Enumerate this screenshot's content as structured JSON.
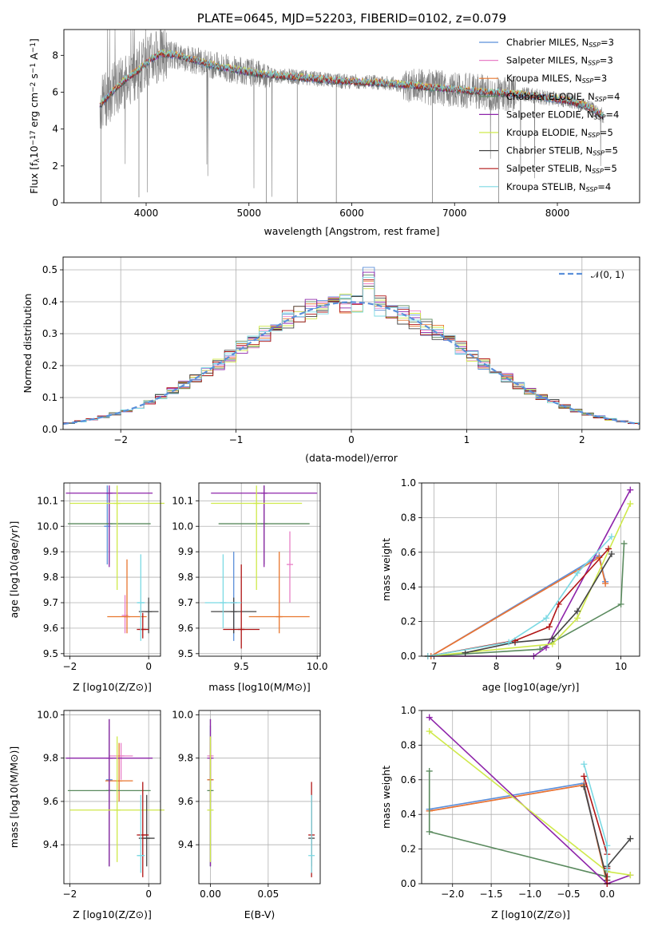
{
  "figure": {
    "title": "PLATE=0645, MJD=52203, FIBERID=0102, z=0.079"
  },
  "colors": {
    "chabrier_miles": "#5b8fd9",
    "salpeter_miles": "#e87fc7",
    "kroupa_miles": "#e8762e",
    "chabrier_elodie": "#5a8a5e",
    "salpeter_elodie": "#8e24aa",
    "kroupa_elodie": "#cfe94a",
    "chabrier_stelib": "#444444",
    "salpeter_stelib": "#b01515",
    "kroupa_stelib": "#7bd9e3",
    "data": "#808080",
    "normal_curve": "#5b8fd9",
    "grid": "#b0b0b0"
  },
  "chart_data": [
    {
      "id": "spectrum",
      "type": "line",
      "title": "PLATE=0645, MJD=52203, FIBERID=0102, z=0.079",
      "xlabel": "wavelength [Angstrom, rest frame]",
      "ylabel": "Flux [f",
      "ylabel_parts": [
        "Flux [f",
        "λ",
        "10",
        "−17",
        " erg cm",
        "−2",
        " s",
        "−1",
        " A",
        "−1",
        "]"
      ],
      "xlim": [
        3200,
        8800
      ],
      "ylim": [
        0,
        9.4
      ],
      "xticks": [
        4000,
        5000,
        6000,
        7000,
        8000
      ],
      "yticks": [
        0,
        2,
        4,
        6,
        8
      ],
      "grid": false,
      "legend_position": "top-right",
      "continuum": {
        "x": [
          3550,
          3650,
          3800,
          3950,
          4050,
          4150,
          4300,
          4500,
          4700,
          4900,
          5100,
          5300,
          5500,
          5700,
          5900,
          6100,
          6300,
          6500,
          6700,
          6900,
          7100,
          7300,
          7500,
          7700,
          7900,
          8100,
          8300,
          8450
        ],
        "y": [
          5.3,
          5.9,
          6.7,
          7.3,
          7.8,
          8.1,
          8.0,
          7.7,
          7.4,
          7.2,
          7.0,
          6.9,
          6.8,
          6.7,
          6.6,
          6.55,
          6.5,
          6.4,
          6.3,
          6.2,
          6.1,
          6.0,
          5.95,
          5.85,
          5.7,
          5.55,
          5.2,
          4.7
        ]
      },
      "series": [
        {
          "name": "Chabrier MILES",
          "nssp": "3",
          "color_key": "chabrier_miles"
        },
        {
          "name": "Salpeter MILES",
          "nssp": "3",
          "color_key": "salpeter_miles"
        },
        {
          "name": "Kroupa MILES",
          "nssp": "3",
          "color_key": "kroupa_miles"
        },
        {
          "name": "Chabrier ELODIE",
          "nssp": "4",
          "color_key": "chabrier_elodie"
        },
        {
          "name": "Salpeter ELODIE",
          "nssp": "4",
          "color_key": "salpeter_elodie"
        },
        {
          "name": "Kroupa ELODIE",
          "nssp": "5",
          "color_key": "kroupa_elodie"
        },
        {
          "name": "Chabrier STELIB",
          "nssp": "5",
          "color_key": "chabrier_stelib"
        },
        {
          "name": "Salpeter STELIB",
          "nssp": "5",
          "color_key": "salpeter_stelib"
        },
        {
          "name": "Kroupa STELIB",
          "nssp": "4",
          "color_key": "kroupa_stelib"
        }
      ]
    },
    {
      "id": "residuals",
      "type": "histogram",
      "xlabel": "(data-model)/error",
      "ylabel": "Normed distribution",
      "xlim": [
        -2.5,
        2.5
      ],
      "ylim": [
        0,
        0.54
      ],
      "xticks": [
        -2,
        -1,
        0,
        1,
        2
      ],
      "xtick_labels": [
        "−2",
        "−1",
        "0",
        "1",
        "2"
      ],
      "yticks": [
        0.0,
        0.1,
        0.2,
        0.3,
        0.4,
        0.5
      ],
      "ytick_labels": [
        "0.0",
        "0.1",
        "0.2",
        "0.3",
        "0.4",
        "0.5"
      ],
      "grid": true,
      "legend_position": "top-right",
      "legend_label": "𝒩(0, 1)",
      "bin_width": 0.1
    },
    {
      "id": "age_vs_Z",
      "type": "errorbar",
      "xlabel": "Z [log10(Z/Z⊙)]",
      "ylabel": "age  [log10(age/yr)]",
      "xlim": [
        -2.15,
        0.3
      ],
      "ylim": [
        9.49,
        10.17
      ],
      "xticks": [
        -2,
        0
      ],
      "xtick_labels": [
        "−2",
        "0"
      ],
      "yticks": [
        9.5,
        9.6,
        9.7,
        9.8,
        9.9,
        10.0,
        10.1
      ],
      "ytick_labels": [
        "9.5",
        "9.6",
        "9.7",
        "9.8",
        "9.9",
        "10.0",
        "10.1"
      ],
      "grid": true,
      "points": [
        {
          "c": "chabrier_miles",
          "x": -1.05,
          "xerr": 0.0,
          "y": 10.0,
          "ylo": 9.85,
          "yhi": 10.16
        },
        {
          "c": "salpeter_miles",
          "x": -0.6,
          "xerr": 0.0,
          "y": 9.65,
          "ylo": 9.58,
          "yhi": 9.73
        },
        {
          "c": "kroupa_miles",
          "x": -0.55,
          "xerr": 0.5,
          "y": 9.645,
          "ylo": 9.58,
          "yhi": 9.87
        },
        {
          "c": "chabrier_elodie",
          "x": -1.0,
          "xerr": 1.05,
          "y": 10.01,
          "ylo": 9.85,
          "yhi": 10.15
        },
        {
          "c": "salpeter_elodie",
          "x": -1.0,
          "xerr": 1.1,
          "y": 10.13,
          "ylo": 9.84,
          "yhi": 10.16
        },
        {
          "c": "kroupa_elodie",
          "x": -0.8,
          "xerr": 1.2,
          "y": 10.09,
          "ylo": 9.75,
          "yhi": 10.16
        },
        {
          "c": "chabrier_stelib",
          "x": 0.0,
          "xerr": 0.25,
          "y": 9.665,
          "ylo": 9.58,
          "yhi": 9.72
        },
        {
          "c": "salpeter_stelib",
          "x": -0.15,
          "xerr": 0.15,
          "y": 9.595,
          "ylo": 9.56,
          "yhi": 9.66
        },
        {
          "c": "kroupa_stelib",
          "x": -0.2,
          "xerr": 0.1,
          "y": 9.7,
          "ylo": 9.55,
          "yhi": 9.89
        }
      ]
    },
    {
      "id": "age_vs_mass",
      "type": "errorbar",
      "xlabel": "mass [log10(M/M⊙)]",
      "ylabel": "",
      "xlim": [
        9.22,
        10.02
      ],
      "ylim": [
        9.49,
        10.17
      ],
      "xticks": [
        9.5,
        10.0
      ],
      "xtick_labels": [
        "9.5",
        "10.0"
      ],
      "yticks": [
        9.5,
        9.6,
        9.7,
        9.8,
        9.9,
        10.0,
        10.1
      ],
      "ytick_labels": [
        "9.5",
        "9.6",
        "9.7",
        "9.8",
        "9.9",
        "10.0",
        "10.1"
      ],
      "grid": true,
      "points": [
        {
          "c": "chabrier_miles",
          "x": 9.45,
          "xerr": 0.0,
          "y": 9.7,
          "ylo": 9.55,
          "yhi": 9.9
        },
        {
          "c": "salpeter_miles",
          "x": 9.82,
          "xerr": 0.0,
          "y": 9.85,
          "ylo": 9.7,
          "yhi": 9.98
        },
        {
          "c": "kroupa_miles",
          "x": 9.75,
          "xerr": 0.2,
          "y": 9.645,
          "ylo": 9.58,
          "yhi": 9.9
        },
        {
          "c": "chabrier_elodie",
          "x": 9.65,
          "xerr": 0.3,
          "y": 10.01,
          "ylo": 9.85,
          "yhi": 10.16
        },
        {
          "c": "salpeter_elodie",
          "x": 9.65,
          "xerr": 0.35,
          "y": 10.13,
          "ylo": 9.84,
          "yhi": 10.16
        },
        {
          "c": "kroupa_elodie",
          "x": 9.6,
          "xerr": 0.3,
          "y": 10.09,
          "ylo": 9.75,
          "yhi": 10.16
        },
        {
          "c": "chabrier_stelib",
          "x": 9.45,
          "xerr": 0.15,
          "y": 9.665,
          "ylo": 9.58,
          "yhi": 9.72
        },
        {
          "c": "salpeter_stelib",
          "x": 9.5,
          "xerr": 0.12,
          "y": 9.595,
          "ylo": 9.52,
          "yhi": 9.85
        },
        {
          "c": "kroupa_stelib",
          "x": 9.38,
          "xerr": 0.12,
          "y": 9.7,
          "ylo": 9.6,
          "yhi": 9.89
        }
      ]
    },
    {
      "id": "massweight_vs_age",
      "type": "line",
      "xlabel": "age  [log10(age/yr)]",
      "ylabel": "mass weight",
      "xlim": [
        6.8,
        10.3
      ],
      "ylim": [
        0,
        1.0
      ],
      "xticks": [
        7,
        8,
        9,
        10
      ],
      "xtick_labels": [
        "7",
        "8",
        "9",
        "10"
      ],
      "yticks": [
        0.0,
        0.2,
        0.4,
        0.6,
        0.8,
        1.0
      ],
      "ytick_labels": [
        "0.0",
        "0.2",
        "0.4",
        "0.6",
        "0.8",
        "1.0"
      ],
      "grid": true,
      "series": [
        {
          "c": "chabrier_miles",
          "x": [
            6.95,
            9.65,
            9.75
          ],
          "y": [
            0.0,
            0.58,
            0.43
          ]
        },
        {
          "c": "salpeter_miles",
          "x": [
            6.95,
            9.65,
            9.75
          ],
          "y": [
            0.0,
            0.57,
            0.42
          ]
        },
        {
          "c": "kroupa_miles",
          "x": [
            6.95,
            9.65,
            9.75
          ],
          "y": [
            0.0,
            0.57,
            0.42
          ]
        },
        {
          "c": "chabrier_elodie",
          "x": [
            6.9,
            8.7,
            10.0,
            10.05
          ],
          "y": [
            0.0,
            0.04,
            0.3,
            0.65
          ]
        },
        {
          "c": "salpeter_elodie",
          "x": [
            6.9,
            8.6,
            8.8,
            10.15
          ],
          "y": [
            0.0,
            0.0,
            0.05,
            0.96
          ]
        },
        {
          "c": "kroupa_elodie",
          "x": [
            6.9,
            8.9,
            9.3,
            10.15
          ],
          "y": [
            0.0,
            0.07,
            0.22,
            0.88
          ]
        },
        {
          "c": "chabrier_stelib",
          "x": [
            7.5,
            8.3,
            8.9,
            9.3,
            9.85
          ],
          "y": [
            0.02,
            0.08,
            0.1,
            0.26,
            0.59
          ]
        },
        {
          "c": "salpeter_stelib",
          "x": [
            6.9,
            8.3,
            8.85,
            9.0,
            9.8
          ],
          "y": [
            0.0,
            0.09,
            0.17,
            0.3,
            0.62
          ]
        },
        {
          "c": "kroupa_stelib",
          "x": [
            6.9,
            8.2,
            8.8,
            9.3,
            9.85
          ],
          "y": [
            0.0,
            0.08,
            0.22,
            0.48,
            0.69
          ]
        }
      ]
    },
    {
      "id": "mass_vs_Z",
      "type": "errorbar",
      "xlabel": "Z [log10(Z/Z⊙)]",
      "ylabel": "mass [log10(M/M⊙)]",
      "xlim": [
        -2.15,
        0.3
      ],
      "ylim": [
        9.22,
        10.02
      ],
      "xticks": [
        -2,
        0
      ],
      "xtick_labels": [
        "−2",
        "0"
      ],
      "yticks": [
        9.4,
        9.6,
        9.8,
        10.0
      ],
      "ytick_labels": [
        "9.4",
        "9.6",
        "9.8",
        "10.0"
      ],
      "grid": true,
      "points": [
        {
          "c": "chabrier_miles",
          "x": -1.0,
          "xerr": 0.0,
          "y": 9.7,
          "ylo": 9.3,
          "yhi": 9.95
        },
        {
          "c": "salpeter_miles",
          "x": -0.7,
          "xerr": 0.3,
          "y": 9.81,
          "ylo": 9.7,
          "yhi": 9.87
        },
        {
          "c": "kroupa_miles",
          "x": -0.75,
          "xerr": 0.35,
          "y": 9.695,
          "ylo": 9.6,
          "yhi": 9.87
        },
        {
          "c": "chabrier_elodie",
          "x": -1.0,
          "xerr": 1.05,
          "y": 9.65,
          "ylo": 9.3,
          "yhi": 9.98
        },
        {
          "c": "salpeter_elodie",
          "x": -1.0,
          "xerr": 1.1,
          "y": 9.8,
          "ylo": 9.3,
          "yhi": 9.98
        },
        {
          "c": "kroupa_elodie",
          "x": -0.8,
          "xerr": 1.2,
          "y": 9.56,
          "ylo": 9.32,
          "yhi": 9.9
        },
        {
          "c": "chabrier_stelib",
          "x": -0.05,
          "xerr": 0.2,
          "y": 9.43,
          "ylo": 9.3,
          "yhi": 9.63
        },
        {
          "c": "salpeter_stelib",
          "x": -0.15,
          "xerr": 0.15,
          "y": 9.445,
          "ylo": 9.25,
          "yhi": 9.69
        },
        {
          "c": "kroupa_stelib",
          "x": -0.2,
          "xerr": 0.1,
          "y": 9.35,
          "ylo": 9.27,
          "yhi": 9.63
        }
      ]
    },
    {
      "id": "mass_vs_ebv",
      "type": "errorbar",
      "xlabel": "E(B-V)",
      "ylabel": "",
      "xlim": [
        -0.01,
        0.095
      ],
      "ylim": [
        9.22,
        10.02
      ],
      "xticks": [
        0.0,
        0.05
      ],
      "xtick_labels": [
        "0.00",
        "0.05"
      ],
      "yticks": [
        9.4,
        9.6,
        9.8,
        10.0
      ],
      "ytick_labels": [
        "9.4",
        "9.6",
        "9.8",
        "10.0"
      ],
      "grid": true,
      "points": [
        {
          "c": "chabrier_miles",
          "x": 0.0,
          "xerr": 0.0,
          "y": 9.7,
          "ylo": 9.3,
          "yhi": 9.95
        },
        {
          "c": "salpeter_miles",
          "x": 0.0,
          "xerr": 0.0,
          "y": 9.81,
          "ylo": 9.7,
          "yhi": 9.87
        },
        {
          "c": "kroupa_miles",
          "x": 0.0,
          "xerr": 0.0,
          "y": 9.7,
          "ylo": 9.6,
          "yhi": 9.9
        },
        {
          "c": "chabrier_elodie",
          "x": 0.0,
          "xerr": 0.0,
          "y": 9.65,
          "ylo": 9.3,
          "yhi": 9.98
        },
        {
          "c": "salpeter_elodie",
          "x": 0.0,
          "xerr": 0.0,
          "y": 9.8,
          "ylo": 9.3,
          "yhi": 9.98
        },
        {
          "c": "kroupa_elodie",
          "x": 0.0,
          "xerr": 0.0,
          "y": 9.56,
          "ylo": 9.32,
          "yhi": 9.9
        },
        {
          "c": "chabrier_stelib",
          "x": 0.0875,
          "xerr": 0.0,
          "y": 9.43,
          "ylo": 9.3,
          "yhi": 9.63
        },
        {
          "c": "salpeter_stelib",
          "x": 0.0875,
          "xerr": 0.0,
          "y": 9.445,
          "ylo": 9.25,
          "yhi": 9.69
        },
        {
          "c": "kroupa_stelib",
          "x": 0.0875,
          "xerr": 0.0,
          "y": 9.35,
          "ylo": 9.27,
          "yhi": 9.63
        }
      ]
    },
    {
      "id": "massweight_vs_Z",
      "type": "line",
      "xlabel": "Z [log10(Z/Z⊙)]",
      "ylabel": "mass weight",
      "xlim": [
        -2.4,
        0.42
      ],
      "ylim": [
        0,
        1.0
      ],
      "xticks": [
        -2.0,
        -1.5,
        -1.0,
        -0.5,
        0.0
      ],
      "xtick_labels": [
        "−2.0",
        "−1.5",
        "−1.0",
        "−0.5",
        "0.0"
      ],
      "yticks": [
        0.0,
        0.2,
        0.4,
        0.6,
        0.8,
        1.0
      ],
      "ytick_labels": [
        "0.0",
        "0.2",
        "0.4",
        "0.6",
        "0.8",
        "1.0"
      ],
      "grid": true,
      "series": [
        {
          "c": "chabrier_miles",
          "x": [
            -2.3,
            -0.3,
            0.0
          ],
          "y": [
            0.43,
            0.58,
            0.0
          ]
        },
        {
          "c": "salpeter_miles",
          "x": [
            -2.3,
            -0.3,
            0.0
          ],
          "y": [
            0.42,
            0.57,
            0.0
          ]
        },
        {
          "c": "kroupa_miles",
          "x": [
            -2.3,
            -0.3,
            0.0
          ],
          "y": [
            0.42,
            0.57,
            0.0
          ]
        },
        {
          "c": "chabrier_elodie",
          "x": [
            -2.3,
            -2.3,
            0.0
          ],
          "y": [
            0.65,
            0.3,
            0.04
          ]
        },
        {
          "c": "salpeter_elodie",
          "x": [
            -2.3,
            0.0,
            0.3
          ],
          "y": [
            0.96,
            0.0,
            0.05
          ]
        },
        {
          "c": "kroupa_elodie",
          "x": [
            -2.3,
            0.0,
            0.3
          ],
          "y": [
            0.88,
            0.07,
            0.05
          ]
        },
        {
          "c": "chabrier_stelib",
          "x": [
            -0.3,
            0.0,
            0.0,
            0.3
          ],
          "y": [
            0.56,
            0.02,
            0.1,
            0.26
          ]
        },
        {
          "c": "salpeter_stelib",
          "x": [
            -0.3,
            0.0,
            0.0,
            0.0
          ],
          "y": [
            0.62,
            0.17,
            0.09,
            0.0
          ]
        },
        {
          "c": "kroupa_stelib",
          "x": [
            -0.3,
            0.0,
            0.0
          ],
          "y": [
            0.69,
            0.22,
            0.08
          ]
        }
      ]
    }
  ]
}
